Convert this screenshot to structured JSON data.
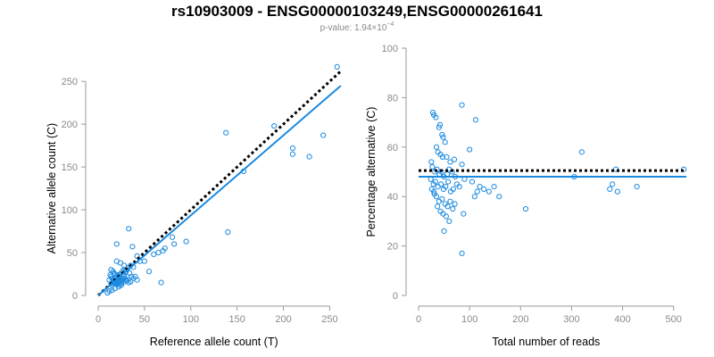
{
  "figure": {
    "title": "rs10903009 - ENSG00000103249,ENSG00000261641",
    "subtitle_prefix": "p-value: 1.94×10",
    "subtitle_exponent": "−4",
    "colors": {
      "points": "#1a8ae0",
      "fit": "#1a8ae0",
      "reference": "#000000",
      "axis": "#9a9a9a"
    }
  },
  "chart_data": [
    {
      "type": "scatter",
      "xlabel": "Reference allele count (T)",
      "ylabel": "Alternative allele count (C)",
      "xlim": [
        0,
        265
      ],
      "ylim": [
        0,
        270
      ],
      "xticks": [
        0,
        50,
        100,
        150,
        200,
        250
      ],
      "yticks": [
        0,
        50,
        100,
        150,
        200,
        250
      ],
      "grid": false,
      "points": [
        [
          20,
          60
        ],
        [
          33,
          78
        ],
        [
          37,
          57
        ],
        [
          42,
          46
        ],
        [
          45,
          40
        ],
        [
          50,
          40
        ],
        [
          55,
          28
        ],
        [
          60,
          48
        ],
        [
          65,
          50
        ],
        [
          70,
          52
        ],
        [
          72,
          55
        ],
        [
          68,
          15
        ],
        [
          80,
          68
        ],
        [
          82,
          60
        ],
        [
          95,
          63
        ],
        [
          138,
          190
        ],
        [
          140,
          74
        ],
        [
          157,
          145
        ],
        [
          190,
          198
        ],
        [
          210,
          172
        ],
        [
          210,
          165
        ],
        [
          228,
          162
        ],
        [
          243,
          187
        ],
        [
          258,
          267
        ],
        [
          20,
          40
        ],
        [
          24,
          38
        ],
        [
          28,
          35
        ],
        [
          30,
          30
        ],
        [
          32,
          32
        ],
        [
          35,
          35
        ],
        [
          38,
          33
        ],
        [
          34,
          26
        ],
        [
          31,
          22
        ],
        [
          30,
          18
        ],
        [
          27,
          15
        ],
        [
          25,
          12
        ],
        [
          22,
          10
        ],
        [
          18,
          8
        ],
        [
          15,
          6
        ],
        [
          12,
          5
        ],
        [
          10,
          3
        ],
        [
          14,
          30
        ],
        [
          16,
          28
        ],
        [
          18,
          25
        ],
        [
          20,
          22
        ],
        [
          22,
          20
        ],
        [
          24,
          25
        ],
        [
          26,
          28
        ],
        [
          28,
          30
        ],
        [
          30,
          28
        ],
        [
          12,
          18
        ],
        [
          14,
          22
        ],
        [
          16,
          18
        ],
        [
          18,
          20
        ],
        [
          20,
          18
        ],
        [
          22,
          16
        ],
        [
          24,
          18
        ],
        [
          26,
          20
        ],
        [
          28,
          22
        ],
        [
          15,
          12
        ],
        [
          17,
          14
        ],
        [
          19,
          16
        ],
        [
          21,
          14
        ],
        [
          23,
          12
        ],
        [
          25,
          15
        ],
        [
          27,
          18
        ],
        [
          29,
          20
        ],
        [
          31,
          17
        ],
        [
          33,
          15
        ],
        [
          35,
          16
        ],
        [
          38,
          20
        ],
        [
          40,
          22
        ],
        [
          42,
          18
        ],
        [
          36,
          22
        ],
        [
          18,
          15
        ],
        [
          20,
          13
        ],
        [
          22,
          15
        ],
        [
          24,
          17
        ],
        [
          16,
          16
        ],
        [
          14,
          14
        ],
        [
          19,
          20
        ],
        [
          21,
          24
        ],
        [
          23,
          22
        ],
        [
          17,
          26
        ],
        [
          13,
          24
        ],
        [
          15,
          20
        ]
      ],
      "fit_line": {
        "x": [
          0,
          262
        ],
        "y": [
          0,
          245
        ]
      },
      "reference_line": {
        "x": [
          0,
          262
        ],
        "y": [
          0,
          262
        ]
      }
    },
    {
      "type": "scatter",
      "xlabel": "Total number of reads",
      "ylabel": "Percentage alternative (C)",
      "xlim": [
        0,
        525
      ],
      "ylim": [
        0,
        100
      ],
      "xticks": [
        0,
        100,
        200,
        300,
        400,
        500
      ],
      "yticks": [
        0,
        20,
        40,
        60,
        80,
        100
      ],
      "grid": false,
      "points": [
        [
          28,
          74
        ],
        [
          30,
          73
        ],
        [
          34,
          72
        ],
        [
          40,
          68
        ],
        [
          42,
          69
        ],
        [
          46,
          65
        ],
        [
          48,
          64
        ],
        [
          52,
          62
        ],
        [
          35,
          60
        ],
        [
          38,
          58
        ],
        [
          43,
          57
        ],
        [
          47,
          56
        ],
        [
          55,
          56
        ],
        [
          62,
          54
        ],
        [
          70,
          55
        ],
        [
          25,
          54
        ],
        [
          27,
          52
        ],
        [
          32,
          50
        ],
        [
          36,
          51
        ],
        [
          41,
          49
        ],
        [
          45,
          50
        ],
        [
          50,
          48
        ],
        [
          56,
          49
        ],
        [
          60,
          51
        ],
        [
          66,
          50
        ],
        [
          72,
          48
        ],
        [
          24,
          47
        ],
        [
          29,
          45
        ],
        [
          33,
          46
        ],
        [
          38,
          44
        ],
        [
          44,
          45
        ],
        [
          49,
          43
        ],
        [
          53,
          44
        ],
        [
          58,
          46
        ],
        [
          63,
          42
        ],
        [
          68,
          43
        ],
        [
          75,
          45
        ],
        [
          80,
          44
        ],
        [
          30,
          42
        ],
        [
          35,
          40
        ],
        [
          40,
          38
        ],
        [
          46,
          39
        ],
        [
          52,
          37
        ],
        [
          57,
          36
        ],
        [
          62,
          38
        ],
        [
          67,
          35
        ],
        [
          71,
          37
        ],
        [
          26,
          43
        ],
        [
          31,
          41
        ],
        [
          37,
          36
        ],
        [
          43,
          34
        ],
        [
          48,
          33
        ],
        [
          54,
          32
        ],
        [
          60,
          30
        ],
        [
          50,
          26
        ],
        [
          85,
          77
        ],
        [
          112,
          71
        ],
        [
          100,
          59
        ],
        [
          85,
          53
        ],
        [
          90,
          47
        ],
        [
          105,
          46
        ],
        [
          120,
          44
        ],
        [
          128,
          43
        ],
        [
          138,
          42
        ],
        [
          148,
          44
        ],
        [
          158,
          40
        ],
        [
          115,
          42
        ],
        [
          110,
          40
        ],
        [
          88,
          33
        ],
        [
          85,
          17
        ],
        [
          210,
          35
        ],
        [
          320,
          58
        ],
        [
          305,
          48
        ],
        [
          375,
          43
        ],
        [
          380,
          45
        ],
        [
          387,
          51
        ],
        [
          390,
          42
        ],
        [
          428,
          44
        ],
        [
          520,
          51
        ]
      ],
      "fit_line": {
        "x": [
          0,
          525
        ],
        "y": [
          48,
          48
        ]
      },
      "reference_line": {
        "x": [
          0,
          525
        ],
        "y": [
          50.5,
          50.5
        ]
      }
    }
  ]
}
